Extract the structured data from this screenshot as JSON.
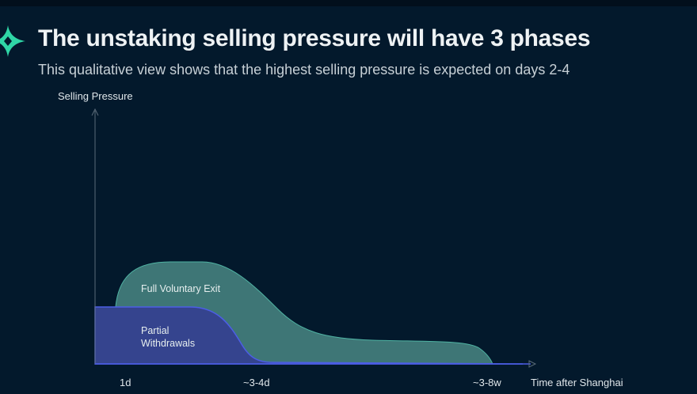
{
  "header": {
    "title": "The unstaking selling pressure will have 3 phases",
    "subtitle": "This qualitative view shows that the highest selling pressure is expected on days 2-4",
    "logo_color": "#2fd6a6"
  },
  "chart_data": {
    "type": "area",
    "title": "",
    "xlabel": "Time after Shanghai",
    "ylabel": "Selling Pressure",
    "x_tick_labels": [
      "1d",
      "~3-4d",
      "~3-8w"
    ],
    "grid": false,
    "qualitative": true,
    "series": [
      {
        "name": "Full Voluntary Exit",
        "color": "#3e7676",
        "stroke": "#4fb3a3"
      },
      {
        "name": "Partial Withdrawals",
        "color": "#35448e",
        "stroke": "#4c5ee6"
      }
    ]
  }
}
